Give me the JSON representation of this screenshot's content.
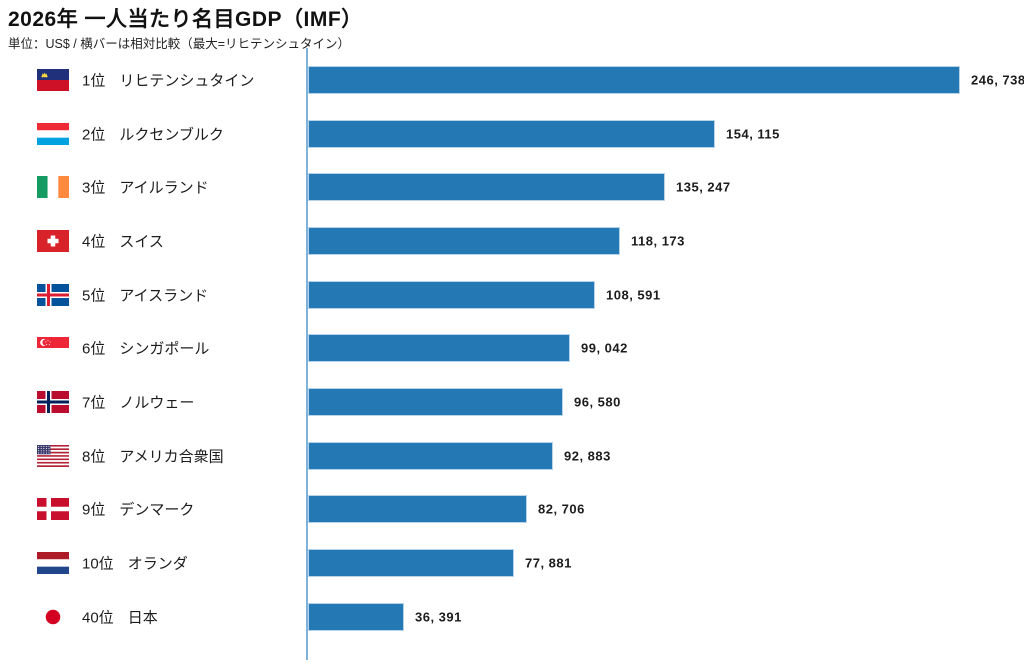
{
  "title": "2026年 一人当たり名目GDP（IMF）",
  "subtitle": "単位：US$ / 横バーは相対比較（最大=リヒテンシュタイン）",
  "colors": {
    "bar_fill": "#2478b4",
    "bar_border": "#b5d3ea",
    "axis_line": "#7fb2da",
    "text": "#1c1c1c"
  },
  "chart_data": {
    "type": "bar",
    "orientation": "horizontal",
    "title": "2026年 一人当たり名目GDP（IMF）",
    "unit": "US$",
    "note": "横バーは相対比較（最大=リヒテンシュタイン）",
    "max_value": 246738,
    "legend": "none",
    "grid": "off",
    "categories": [
      "リヒテンシュタイン",
      "ルクセンブルク",
      "アイルランド",
      "スイス",
      "アイスランド",
      "シンガポール",
      "ノルウェー",
      "アメリカ合衆国",
      "デンマーク",
      "オランダ",
      "日本"
    ],
    "values": [
      246738,
      154115,
      135247,
      118173,
      108591,
      99042,
      96580,
      92883,
      82706,
      77881,
      36391
    ],
    "rows": [
      {
        "rank_label": "1位",
        "name": "リヒテンシュタイン",
        "value": 246738,
        "value_label": "246, 738",
        "flag": "li",
        "flag_name": "liechtenstein"
      },
      {
        "rank_label": "2位",
        "name": "ルクセンブルク",
        "value": 154115,
        "value_label": "154, 115",
        "flag": "lu",
        "flag_name": "luxembourg"
      },
      {
        "rank_label": "3位",
        "name": "アイルランド",
        "value": 135247,
        "value_label": "135, 247",
        "flag": "ie",
        "flag_name": "ireland"
      },
      {
        "rank_label": "4位",
        "name": "スイス",
        "value": 118173,
        "value_label": "118, 173",
        "flag": "ch",
        "flag_name": "switzerland"
      },
      {
        "rank_label": "5位",
        "name": "アイスランド",
        "value": 108591,
        "value_label": "108, 591",
        "flag": "is",
        "flag_name": "iceland"
      },
      {
        "rank_label": "6位",
        "name": "シンガポール",
        "value": 99042,
        "value_label": "99, 042",
        "flag": "sg",
        "flag_name": "singapore"
      },
      {
        "rank_label": "7位",
        "name": "ノルウェー",
        "value": 96580,
        "value_label": "96, 580",
        "flag": "no",
        "flag_name": "norway"
      },
      {
        "rank_label": "8位",
        "name": "アメリカ合衆国",
        "value": 92883,
        "value_label": "92, 883",
        "flag": "us",
        "flag_name": "united-states"
      },
      {
        "rank_label": "9位",
        "name": "デンマーク",
        "value": 82706,
        "value_label": "82, 706",
        "flag": "dk",
        "flag_name": "denmark"
      },
      {
        "rank_label": "10位",
        "name": "オランダ",
        "value": 77881,
        "value_label": "77, 881",
        "flag": "nl",
        "flag_name": "netherlands"
      },
      {
        "rank_label": "40位",
        "name": "日本",
        "value": 36391,
        "value_label": "36, 391",
        "flag": "jp",
        "flag_name": "japan"
      }
    ]
  }
}
